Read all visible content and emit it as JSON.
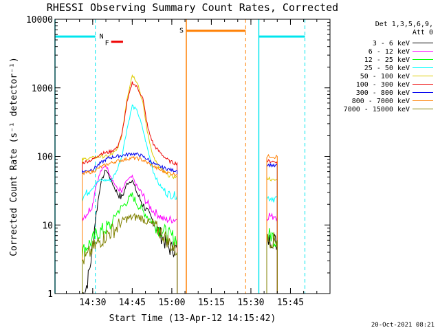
{
  "chart_data": {
    "type": "line",
    "title": "RHESSI Observing Summary Count Rates, Corrected",
    "xlabel": "Start Time (13-Apr-12 14:15:42)",
    "ylabel": "Corrected Count Rate (s⁻¹ detector⁻¹)",
    "yscale": "log",
    "ylim": [
      1,
      10000
    ],
    "xlim": [
      "14:15:42",
      "16:00:00"
    ],
    "x_ticks": [
      "14:30",
      "14:45",
      "15:00",
      "15:15",
      "15:30",
      "15:45"
    ],
    "y_ticks": [
      "1",
      "10",
      "100",
      "1000",
      "10000"
    ],
    "grid": false,
    "legend_position": "right",
    "legend_header": [
      "Det 1,3,5,6,9,",
      "Att 0"
    ],
    "footer_date": "20-Oct-2021 08:21",
    "flags": [
      {
        "label": "N",
        "start": "14:15:42",
        "end": "14:31:00",
        "level": 5600,
        "color": "#00e5ee"
      },
      {
        "label": "",
        "start": "15:33:00",
        "end": "15:50:30",
        "level": 5600,
        "color": "#00e5ee"
      },
      {
        "label": "F",
        "start": "14:37:00",
        "end": "14:41:30",
        "level": 4700,
        "color": "#ee0000"
      },
      {
        "label": "S",
        "start": "15:05:30",
        "end": "15:28:00",
        "level": 6800,
        "color": "#ff7f00"
      }
    ],
    "night_markers": {
      "color": "#00e5ee",
      "solid": [
        "14:15:42",
        "15:33:00"
      ],
      "dashed": [
        "14:31:00",
        "15:50:30"
      ]
    },
    "saa_markers": {
      "color": "#ff7f00",
      "solid": [
        "15:05:30"
      ],
      "dashed": [
        "15:28:00"
      ]
    },
    "series": [
      {
        "name": "3 - 6 keV",
        "color": "#000000",
        "segments": [
          {
            "x": [
              "14:26:00",
              "14:27:00",
              "14:28:00",
              "14:29:00",
              "14:30:00",
              "14:31:00",
              "14:33:00",
              "14:35:00",
              "14:37:00",
              "14:39:00",
              "14:41:00",
              "14:43:00",
              "14:45:00",
              "14:47:00",
              "14:49:00",
              "14:51:00",
              "14:53:00",
              "14:55:00",
              "14:57:00",
              "14:59:00",
              "15:01:00",
              "15:02:00"
            ],
            "y": [
              1,
              1,
              1.5,
              2.5,
              5,
              12,
              40,
              65,
              45,
              30,
              25,
              40,
              45,
              28,
              20,
              15,
              11,
              8,
              6,
              4.5,
              4.5,
              4.5
            ]
          },
          {
            "x": [
              "15:36:00",
              "15:37:00",
              "15:38:00",
              "15:39:00",
              "15:40:00"
            ],
            "y": [
              6,
              6,
              6,
              6,
              5
            ]
          }
        ]
      },
      {
        "name": "6 - 12 keV",
        "color": "#ff00ff",
        "segments": [
          {
            "x": [
              "14:26:00",
              "14:28:00",
              "14:30:00",
              "14:31:00",
              "14:33:00",
              "14:35:00",
              "14:37:00",
              "14:39:00",
              "14:41:00",
              "14:43:00",
              "14:45:00",
              "14:47:00",
              "14:49:00",
              "14:51:00",
              "14:53:00",
              "14:55:00",
              "14:57:00",
              "14:59:00",
              "15:01:00",
              "15:02:00"
            ],
            "y": [
              13,
              15,
              20,
              35,
              60,
              75,
              50,
              35,
              30,
              45,
              50,
              35,
              27,
              20,
              16,
              14,
              12,
              12,
              12,
              12
            ]
          },
          {
            "x": [
              "15:36:00",
              "15:37:00",
              "15:38:00",
              "15:39:00",
              "15:40:00"
            ],
            "y": [
              13,
              14,
              13,
              14,
              13
            ]
          }
        ]
      },
      {
        "name": "12 - 25 keV",
        "color": "#00ff00",
        "segments": [
          {
            "x": [
              "14:26:00",
              "14:28:00",
              "14:30:00",
              "14:31:00",
              "14:33:00",
              "14:35:00",
              "14:37:00",
              "14:39:00",
              "14:41:00",
              "14:43:00",
              "14:45:00",
              "14:47:00",
              "14:49:00",
              "14:51:00",
              "14:53:00",
              "14:55:00",
              "14:57:00",
              "14:59:00",
              "15:01:00",
              "15:02:00"
            ],
            "y": [
              4,
              5,
              6,
              7,
              8,
              9,
              10,
              15,
              18,
              22,
              27,
              20,
              16,
              13,
              11,
              9,
              8,
              7,
              6.5,
              6.5
            ]
          },
          {
            "x": [
              "15:36:00",
              "15:37:00",
              "15:38:00",
              "15:39:00",
              "15:40:00"
            ],
            "y": [
              7,
              7,
              7,
              6,
              6
            ]
          }
        ]
      },
      {
        "name": "25 - 50 keV",
        "color": "#00ffff",
        "segments": [
          {
            "x": [
              "14:26:00",
              "14:28:00",
              "14:30:00",
              "14:31:00",
              "14:33:00",
              "14:35:00",
              "14:37:00",
              "14:39:00",
              "14:41:00",
              "14:43:00",
              "14:45:00",
              "14:47:00",
              "14:49:00",
              "14:51:00",
              "14:53:00",
              "14:55:00",
              "14:57:00",
              "14:59:00",
              "15:01:00",
              "15:02:00"
            ],
            "y": [
              25,
              30,
              35,
              40,
              45,
              45,
              45,
              60,
              100,
              250,
              550,
              450,
              250,
              120,
              60,
              40,
              32,
              28,
              27,
              27
            ]
          },
          {
            "x": [
              "15:36:00",
              "15:37:00",
              "15:38:00",
              "15:39:00",
              "15:40:00"
            ],
            "y": [
              25,
              25,
              25,
              24,
              25
            ]
          }
        ]
      },
      {
        "name": "50 - 100 keV",
        "color": "#ddcc00",
        "segments": [
          {
            "x": [
              "14:26:00",
              "14:28:00",
              "14:30:00",
              "14:33:00",
              "14:36:00",
              "14:39:00",
              "14:41:00",
              "14:43:00",
              "14:45:00",
              "14:47:00",
              "14:49:00",
              "14:51:00",
              "14:53:00",
              "14:55:00",
              "14:57:00",
              "14:59:00",
              "15:01:00",
              "15:02:00"
            ],
            "y": [
              90,
              93,
              95,
              100,
              100,
              120,
              200,
              700,
              1550,
              1200,
              600,
              200,
              100,
              70,
              60,
              52,
              50,
              50
            ]
          },
          {
            "x": [
              "15:36:00",
              "15:37:00",
              "15:38:00",
              "15:39:00",
              "15:40:00"
            ],
            "y": [
              48,
              48,
              45,
              45,
              45
            ]
          }
        ]
      },
      {
        "name": "100 - 300 keV",
        "color": "#ee0000",
        "segments": [
          {
            "x": [
              "14:26:00",
              "14:28:00",
              "14:30:00",
              "14:33:00",
              "14:36:00",
              "14:39:00",
              "14:41:00",
              "14:43:00",
              "14:45:00",
              "14:47:00",
              "14:49:00",
              "14:51:00",
              "14:53:00",
              "14:55:00",
              "14:57:00",
              "14:59:00",
              "15:01:00",
              "15:02:00"
            ],
            "y": [
              80,
              85,
              90,
              110,
              115,
              130,
              200,
              600,
              1200,
              1000,
              700,
              250,
              150,
              120,
              100,
              85,
              80,
              80
            ]
          },
          {
            "x": [
              "15:36:00",
              "15:37:00",
              "15:38:00",
              "15:39:00",
              "15:40:00"
            ],
            "y": [
              85,
              85,
              85,
              83,
              85
            ]
          }
        ]
      },
      {
        "name": "300 - 800 keV",
        "color": "#0000ee",
        "segments": [
          {
            "x": [
              "14:26:00",
              "14:28:00",
              "14:30:00",
              "14:33:00",
              "14:36:00",
              "14:39:00",
              "14:42:00",
              "14:45:00",
              "14:48:00",
              "14:51:00",
              "14:54:00",
              "14:57:00",
              "15:00:00",
              "15:02:00"
            ],
            "y": [
              60,
              62,
              65,
              80,
              95,
              100,
              105,
              110,
              105,
              90,
              75,
              68,
              63,
              62
            ]
          },
          {
            "x": [
              "15:36:00",
              "15:37:00",
              "15:38:00",
              "15:39:00",
              "15:40:00"
            ],
            "y": [
              75,
              75,
              75,
              72,
              74
            ]
          }
        ]
      },
      {
        "name": "800 - 7000 keV",
        "color": "#ff7f00",
        "segments": [
          {
            "x": [
              "14:26:00",
              "14:28:00",
              "14:30:00",
              "14:33:00",
              "14:36:00",
              "14:39:00",
              "14:42:00",
              "14:45:00",
              "14:48:00",
              "14:51:00",
              "14:54:00",
              "14:57:00",
              "15:00:00",
              "15:02:00"
            ],
            "y": [
              55,
              58,
              60,
              70,
              78,
              85,
              90,
              95,
              92,
              80,
              68,
              60,
              56,
              55
            ]
          },
          {
            "x": [
              "15:36:00",
              "15:37:00",
              "15:38:00",
              "15:39:00",
              "15:40:00"
            ],
            "y": [
              100,
              100,
              100,
              98,
              100
            ]
          }
        ]
      },
      {
        "name": "7000 - 15000 keV",
        "color": "#808000",
        "segments": [
          {
            "x": [
              "14:26:00",
              "14:28:00",
              "14:30:00",
              "14:33:00",
              "14:36:00",
              "14:39:00",
              "14:42:00",
              "14:45:00",
              "14:48:00",
              "14:51:00",
              "14:54:00",
              "14:57:00",
              "15:00:00",
              "15:02:00"
            ],
            "y": [
              3,
              3.5,
              4.5,
              6,
              7.5,
              9,
              12,
              13,
              13,
              11,
              9,
              7,
              5,
              4
            ]
          },
          {
            "x": [
              "15:36:00",
              "15:37:00",
              "15:38:00",
              "15:39:00",
              "15:40:00"
            ],
            "y": [
              6,
              6,
              6,
              6,
              6
            ]
          }
        ]
      }
    ]
  }
}
